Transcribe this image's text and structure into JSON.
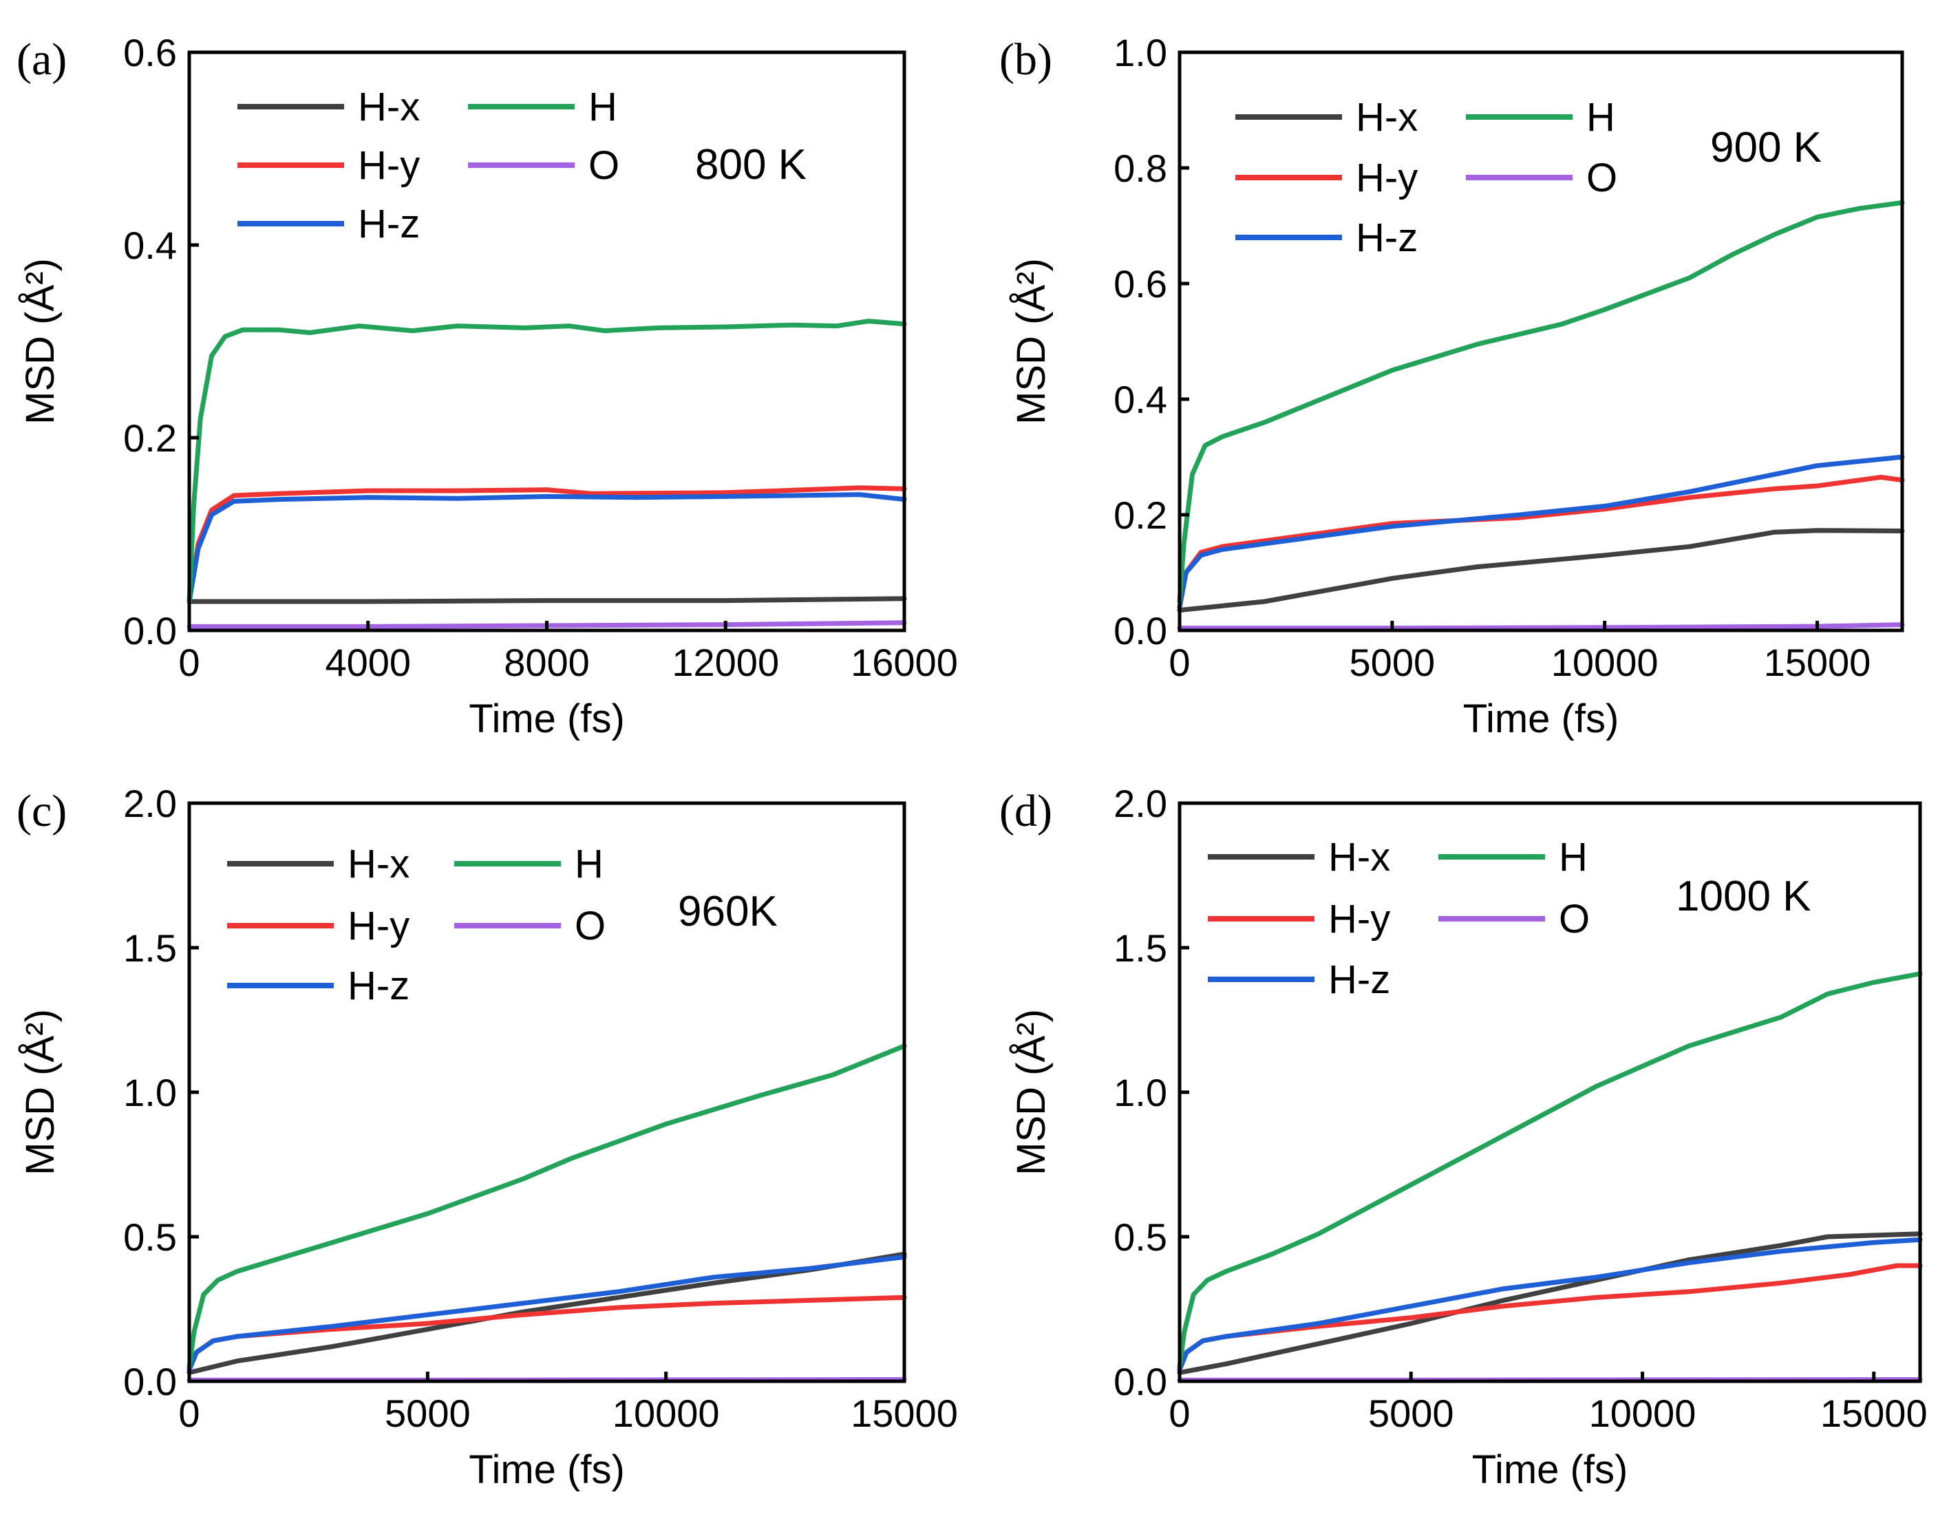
{
  "colors": {
    "H-x": "#404040",
    "H-y": "#ee3333",
    "H-z": "#1f5fd6",
    "H": "#23a35a",
    "O": "#a463e0"
  },
  "chart_data": [
    {
      "type": "line",
      "panel_label": "(a)",
      "temperature_label": "800 K",
      "xlabel": "Time (fs)",
      "ylabel": "MSD (Å²)",
      "xlim": [
        0,
        16000
      ],
      "ylim": [
        0,
        0.6
      ],
      "xticks": [
        0,
        4000,
        8000,
        12000,
        16000
      ],
      "yticks": [
        0.0,
        0.2,
        0.4,
        0.6
      ],
      "ytick_labels": [
        "0.0",
        "0.2",
        "0.4",
        "0.6"
      ],
      "legend": [
        "H-x",
        "H",
        "H-y",
        "O",
        "H-z"
      ],
      "series": [
        {
          "name": "H-x",
          "points": [
            [
              0,
              0.03
            ],
            [
              4000,
              0.03
            ],
            [
              8000,
              0.031
            ],
            [
              12000,
              0.031
            ],
            [
              16000,
              0.033
            ]
          ]
        },
        {
          "name": "H-y",
          "points": [
            [
              0,
              0.03
            ],
            [
              200,
              0.09
            ],
            [
              500,
              0.125
            ],
            [
              1000,
              0.14
            ],
            [
              2000,
              0.142
            ],
            [
              4000,
              0.145
            ],
            [
              6000,
              0.145
            ],
            [
              8000,
              0.146
            ],
            [
              9000,
              0.142
            ],
            [
              12000,
              0.143
            ],
            [
              15000,
              0.148
            ],
            [
              16000,
              0.147
            ]
          ]
        },
        {
          "name": "H-z",
          "points": [
            [
              0,
              0.03
            ],
            [
              200,
              0.085
            ],
            [
              500,
              0.12
            ],
            [
              1000,
              0.134
            ],
            [
              2000,
              0.136
            ],
            [
              4000,
              0.138
            ],
            [
              6000,
              0.137
            ],
            [
              8000,
              0.139
            ],
            [
              10000,
              0.138
            ],
            [
              12000,
              0.139
            ],
            [
              15000,
              0.141
            ],
            [
              16000,
              0.136
            ]
          ]
        },
        {
          "name": "H",
          "points": [
            [
              0,
              0.03
            ],
            [
              100,
              0.13
            ],
            [
              250,
              0.22
            ],
            [
              500,
              0.285
            ],
            [
              800,
              0.305
            ],
            [
              1200,
              0.312
            ],
            [
              2000,
              0.312
            ],
            [
              2700,
              0.309
            ],
            [
              3800,
              0.316
            ],
            [
              5000,
              0.311
            ],
            [
              6000,
              0.316
            ],
            [
              7500,
              0.314
            ],
            [
              8500,
              0.316
            ],
            [
              9300,
              0.311
            ],
            [
              10500,
              0.314
            ],
            [
              12000,
              0.315
            ],
            [
              13500,
              0.317
            ],
            [
              14500,
              0.316
            ],
            [
              15200,
              0.321
            ],
            [
              16000,
              0.318
            ]
          ]
        },
        {
          "name": "O",
          "points": [
            [
              0,
              0.004
            ],
            [
              4000,
              0.004
            ],
            [
              8000,
              0.005
            ],
            [
              12000,
              0.006
            ],
            [
              16000,
              0.008
            ]
          ]
        }
      ]
    },
    {
      "type": "line",
      "panel_label": "(b)",
      "temperature_label": "900 K",
      "xlabel": "Time (fs)",
      "ylabel": "MSD (Å²)",
      "xlim": [
        0,
        17000
      ],
      "ylim": [
        0,
        1.0
      ],
      "xticks": [
        0,
        5000,
        10000,
        15000
      ],
      "yticks": [
        0.0,
        0.2,
        0.4,
        0.6,
        0.8,
        1.0
      ],
      "ytick_labels": [
        "0.0",
        "0.2",
        "0.4",
        "0.6",
        "0.8",
        "1.0"
      ],
      "legend": [
        "H-x",
        "H",
        "H-y",
        "O",
        "H-z"
      ],
      "series": [
        {
          "name": "H-x",
          "points": [
            [
              0,
              0.035
            ],
            [
              2000,
              0.05
            ],
            [
              5000,
              0.09
            ],
            [
              7000,
              0.11
            ],
            [
              10000,
              0.13
            ],
            [
              12000,
              0.145
            ],
            [
              14000,
              0.17
            ],
            [
              15000,
              0.173
            ],
            [
              17000,
              0.172
            ]
          ]
        },
        {
          "name": "H-y",
          "points": [
            [
              0,
              0.04
            ],
            [
              150,
              0.1
            ],
            [
              500,
              0.135
            ],
            [
              1000,
              0.145
            ],
            [
              3000,
              0.165
            ],
            [
              5000,
              0.185
            ],
            [
              8000,
              0.195
            ],
            [
              10000,
              0.21
            ],
            [
              12000,
              0.23
            ],
            [
              14000,
              0.245
            ],
            [
              15000,
              0.25
            ],
            [
              16500,
              0.265
            ],
            [
              17000,
              0.26
            ]
          ]
        },
        {
          "name": "H-z",
          "points": [
            [
              0,
              0.04
            ],
            [
              150,
              0.1
            ],
            [
              500,
              0.13
            ],
            [
              1000,
              0.14
            ],
            [
              3000,
              0.16
            ],
            [
              5000,
              0.18
            ],
            [
              8000,
              0.2
            ],
            [
              10000,
              0.215
            ],
            [
              12000,
              0.24
            ],
            [
              14000,
              0.27
            ],
            [
              15000,
              0.285
            ],
            [
              17000,
              0.3
            ]
          ]
        },
        {
          "name": "H",
          "points": [
            [
              0,
              0.05
            ],
            [
              100,
              0.15
            ],
            [
              300,
              0.27
            ],
            [
              600,
              0.32
            ],
            [
              1000,
              0.335
            ],
            [
              2000,
              0.36
            ],
            [
              3000,
              0.39
            ],
            [
              5000,
              0.45
            ],
            [
              7000,
              0.495
            ],
            [
              9000,
              0.53
            ],
            [
              10000,
              0.555
            ],
            [
              12000,
              0.61
            ],
            [
              13000,
              0.65
            ],
            [
              14000,
              0.685
            ],
            [
              15000,
              0.715
            ],
            [
              16000,
              0.73
            ],
            [
              17000,
              0.74
            ]
          ]
        },
        {
          "name": "O",
          "points": [
            [
              0,
              0.004
            ],
            [
              5000,
              0.004
            ],
            [
              10000,
              0.005
            ],
            [
              15000,
              0.007
            ],
            [
              17000,
              0.01
            ]
          ]
        }
      ]
    },
    {
      "type": "line",
      "panel_label": "(c)",
      "temperature_label": "960K",
      "xlabel": "Time (fs)",
      "ylabel": "MSD (Å²)",
      "xlim": [
        0,
        15000
      ],
      "ylim": [
        0,
        2.0
      ],
      "xticks": [
        0,
        5000,
        10000,
        15000
      ],
      "yticks": [
        0.0,
        0.5,
        1.0,
        1.5,
        2.0
      ],
      "ytick_labels": [
        "0.0",
        "0.5",
        "1.0",
        "1.5",
        "2.0"
      ],
      "legend": [
        "H-x",
        "H",
        "H-y",
        "O",
        "H-z"
      ],
      "series": [
        {
          "name": "H-x",
          "points": [
            [
              0,
              0.03
            ],
            [
              1000,
              0.07
            ],
            [
              3000,
              0.12
            ],
            [
              5000,
              0.18
            ],
            [
              7000,
              0.24
            ],
            [
              9000,
              0.29
            ],
            [
              11000,
              0.34
            ],
            [
              13000,
              0.385
            ],
            [
              15000,
              0.44
            ]
          ]
        },
        {
          "name": "H-y",
          "points": [
            [
              0,
              0.04
            ],
            [
              150,
              0.1
            ],
            [
              500,
              0.14
            ],
            [
              1000,
              0.155
            ],
            [
              3000,
              0.18
            ],
            [
              5000,
              0.2
            ],
            [
              7000,
              0.23
            ],
            [
              9000,
              0.255
            ],
            [
              11000,
              0.27
            ],
            [
              13000,
              0.28
            ],
            [
              15000,
              0.29
            ]
          ]
        },
        {
          "name": "H-z",
          "points": [
            [
              0,
              0.04
            ],
            [
              150,
              0.1
            ],
            [
              500,
              0.14
            ],
            [
              1000,
              0.155
            ],
            [
              3000,
              0.19
            ],
            [
              5000,
              0.23
            ],
            [
              7000,
              0.27
            ],
            [
              9000,
              0.31
            ],
            [
              11000,
              0.36
            ],
            [
              13000,
              0.39
            ],
            [
              15000,
              0.43
            ]
          ]
        },
        {
          "name": "H",
          "points": [
            [
              0,
              0.05
            ],
            [
              100,
              0.17
            ],
            [
              300,
              0.3
            ],
            [
              600,
              0.35
            ],
            [
              1000,
              0.38
            ],
            [
              2000,
              0.43
            ],
            [
              3000,
              0.48
            ],
            [
              5000,
              0.58
            ],
            [
              7000,
              0.7
            ],
            [
              8000,
              0.77
            ],
            [
              10000,
              0.89
            ],
            [
              12000,
              0.99
            ],
            [
              13500,
              1.06
            ],
            [
              15000,
              1.16
            ]
          ]
        },
        {
          "name": "O",
          "points": [
            [
              0,
              0.004
            ],
            [
              5000,
              0.004
            ],
            [
              10000,
              0.005
            ],
            [
              15000,
              0.006
            ]
          ]
        }
      ]
    },
    {
      "type": "line",
      "panel_label": "(d)",
      "temperature_label": "1000 K",
      "xlabel": "Time (fs)",
      "ylabel": "MSD (Å²)",
      "xlim": [
        0,
        16000
      ],
      "ylim": [
        0,
        2.0
      ],
      "xticks": [
        0,
        5000,
        10000,
        15000
      ],
      "yticks": [
        0.0,
        0.5,
        1.0,
        1.5,
        2.0
      ],
      "ytick_labels": [
        "0.0",
        "0.5",
        "1.0",
        "1.5",
        "2.0"
      ],
      "legend": [
        "H-x",
        "H",
        "H-y",
        "O",
        "H-z"
      ],
      "series": [
        {
          "name": "H-x",
          "points": [
            [
              0,
              0.03
            ],
            [
              1000,
              0.06
            ],
            [
              3000,
              0.13
            ],
            [
              5000,
              0.2
            ],
            [
              7000,
              0.28
            ],
            [
              9000,
              0.35
            ],
            [
              11000,
              0.42
            ],
            [
              13000,
              0.47
            ],
            [
              14000,
              0.5
            ],
            [
              16000,
              0.51
            ]
          ]
        },
        {
          "name": "H-y",
          "points": [
            [
              0,
              0.04
            ],
            [
              150,
              0.1
            ],
            [
              500,
              0.14
            ],
            [
              1000,
              0.155
            ],
            [
              3000,
              0.19
            ],
            [
              5000,
              0.22
            ],
            [
              7000,
              0.26
            ],
            [
              9000,
              0.29
            ],
            [
              11000,
              0.31
            ],
            [
              13000,
              0.34
            ],
            [
              14500,
              0.37
            ],
            [
              15500,
              0.4
            ],
            [
              16000,
              0.4
            ]
          ]
        },
        {
          "name": "H-z",
          "points": [
            [
              0,
              0.04
            ],
            [
              150,
              0.1
            ],
            [
              500,
              0.14
            ],
            [
              1000,
              0.155
            ],
            [
              3000,
              0.2
            ],
            [
              5000,
              0.26
            ],
            [
              7000,
              0.32
            ],
            [
              9000,
              0.36
            ],
            [
              11000,
              0.41
            ],
            [
              13000,
              0.45
            ],
            [
              15000,
              0.48
            ],
            [
              16000,
              0.49
            ]
          ]
        },
        {
          "name": "H",
          "points": [
            [
              0,
              0.05
            ],
            [
              100,
              0.17
            ],
            [
              300,
              0.3
            ],
            [
              600,
              0.35
            ],
            [
              1000,
              0.38
            ],
            [
              2000,
              0.44
            ],
            [
              3000,
              0.51
            ],
            [
              5000,
              0.68
            ],
            [
              7000,
              0.85
            ],
            [
              9000,
              1.02
            ],
            [
              11000,
              1.16
            ],
            [
              13000,
              1.26
            ],
            [
              14000,
              1.34
            ],
            [
              15000,
              1.38
            ],
            [
              16000,
              1.41
            ]
          ]
        },
        {
          "name": "O",
          "points": [
            [
              0,
              0.004
            ],
            [
              5000,
              0.004
            ],
            [
              10000,
              0.005
            ],
            [
              16000,
              0.006
            ]
          ]
        }
      ]
    }
  ]
}
